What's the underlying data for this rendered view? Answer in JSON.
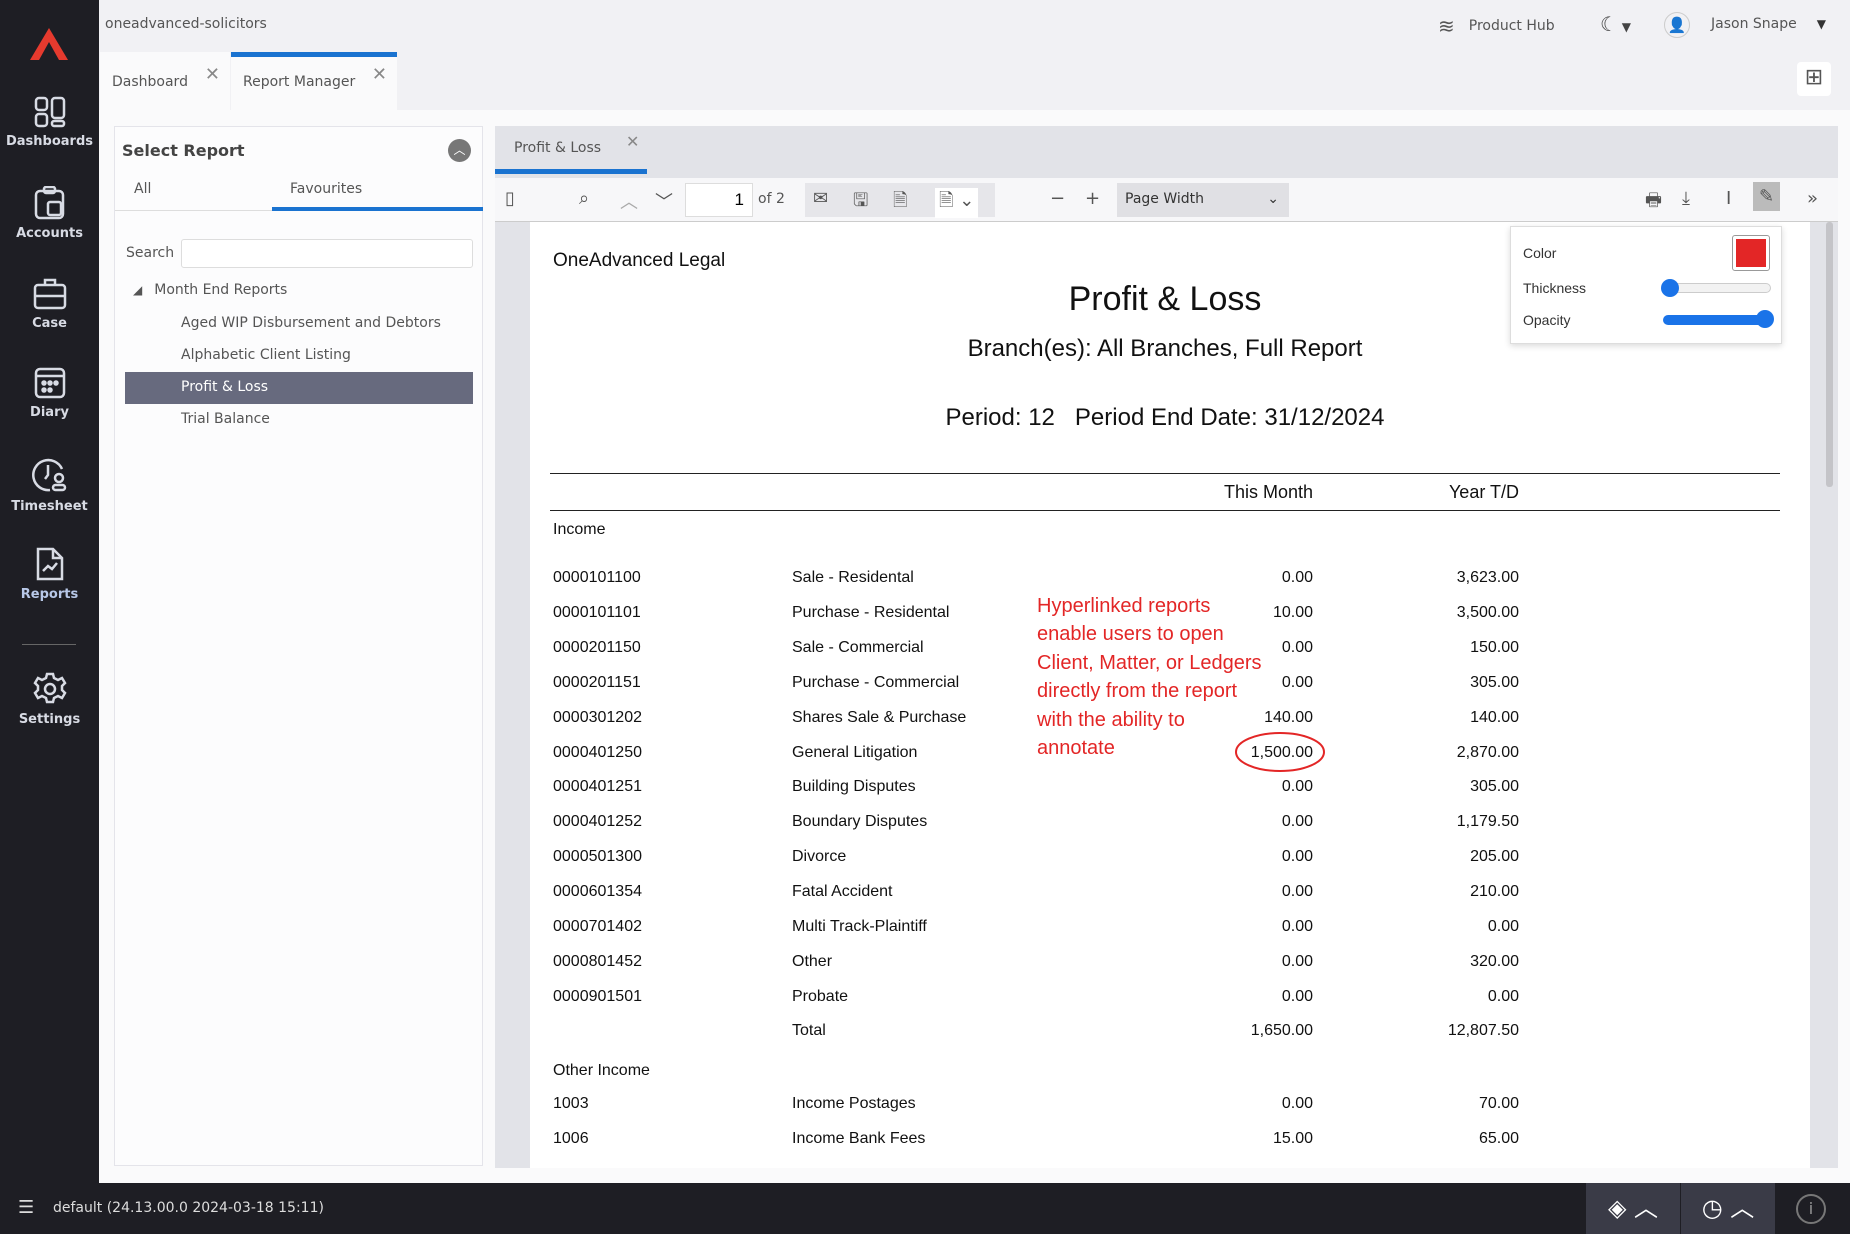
{
  "app": {
    "org": "oneadvanced-solicitors",
    "product_hub": "Product Hub",
    "user": "Jason Snape",
    "version": "default (24.13.00.0 2024-03-18 15:11)"
  },
  "sidebar": {
    "items": [
      {
        "label": "Dashboards"
      },
      {
        "label": "Accounts"
      },
      {
        "label": "Case"
      },
      {
        "label": "Diary"
      },
      {
        "label": "Timesheet"
      },
      {
        "label": "Reports"
      },
      {
        "label": "Settings"
      }
    ]
  },
  "tabs": [
    {
      "label": "Dashboard"
    },
    {
      "label": "Report Manager",
      "active": true
    }
  ],
  "select_report": {
    "title": "Select Report",
    "tabs": [
      "All",
      "Favourites"
    ],
    "active_tab": "Favourites",
    "search_label": "Search",
    "search_value": "",
    "group": "Month End Reports",
    "reports": [
      "Aged WIP Disbursement and Debtors",
      "Alphabetic Client Listing",
      "Profit & Loss",
      "Trial Balance"
    ],
    "selected": "Profit & Loss"
  },
  "viewer": {
    "tab": "Profit & Loss",
    "page": "1",
    "of_pages": "of 2",
    "zoom": "Page Width"
  },
  "annotation_popup": {
    "color_label": "Color",
    "thickness_label": "Thickness",
    "opacity_label": "Opacity",
    "color": "#e32626",
    "thickness": 0.05,
    "opacity": 1.0
  },
  "report": {
    "company": "OneAdvanced Legal",
    "title": "Profit & Loss",
    "branch": "Branch(es): All Branches, Full Report",
    "period": "Period: 12   Period End Date: 31/12/2024",
    "col_this_month": "This Month",
    "col_ytd": "Year T/D",
    "section_income": "Income",
    "income_rows": [
      [
        "0000101100",
        "Sale - Residental",
        "0.00",
        "3,623.00"
      ],
      [
        "0000101101",
        "Purchase - Residental",
        "10.00",
        "3,500.00"
      ],
      [
        "0000201150",
        "Sale - Commercial",
        "0.00",
        "150.00"
      ],
      [
        "0000201151",
        "Purchase - Commercial",
        "0.00",
        "305.00"
      ],
      [
        "0000301202",
        "Shares Sale & Purchase",
        "140.00",
        "140.00"
      ],
      [
        "0000401250",
        "General Litigation",
        "1,500.00",
        "2,870.00"
      ],
      [
        "0000401251",
        "Building Disputes",
        "0.00",
        "305.00"
      ],
      [
        "0000401252",
        "Boundary Disputes",
        "0.00",
        "1,179.50"
      ],
      [
        "0000501300",
        "Divorce",
        "0.00",
        "205.00"
      ],
      [
        "0000601354",
        "Fatal Accident",
        "0.00",
        "210.00"
      ],
      [
        "0000701402",
        "Multi Track-Plaintiff",
        "0.00",
        "0.00"
      ],
      [
        "0000801452",
        "Other",
        "0.00",
        "320.00"
      ],
      [
        "0000901501",
        "Probate",
        "0.00",
        "0.00"
      ]
    ],
    "total": [
      "Total",
      "1,650.00",
      "12,807.50"
    ],
    "section_other": "Other Income",
    "other_rows": [
      [
        "1003",
        "Income Postages",
        "0.00",
        "70.00"
      ],
      [
        "1006",
        "Income Bank Fees",
        "15.00",
        "65.00"
      ]
    ],
    "annotation_lines": [
      "Hyperlinked reports",
      "enable users to open",
      "Client, Matter, or Ledgers",
      "directly from the report",
      "with the ability to",
      "annotate"
    ],
    "annotation_color": "#e32626"
  },
  "colors": {
    "accent": "#1a73d0",
    "sidebar": "#1e1e24",
    "selected_row": "#676a7e"
  }
}
